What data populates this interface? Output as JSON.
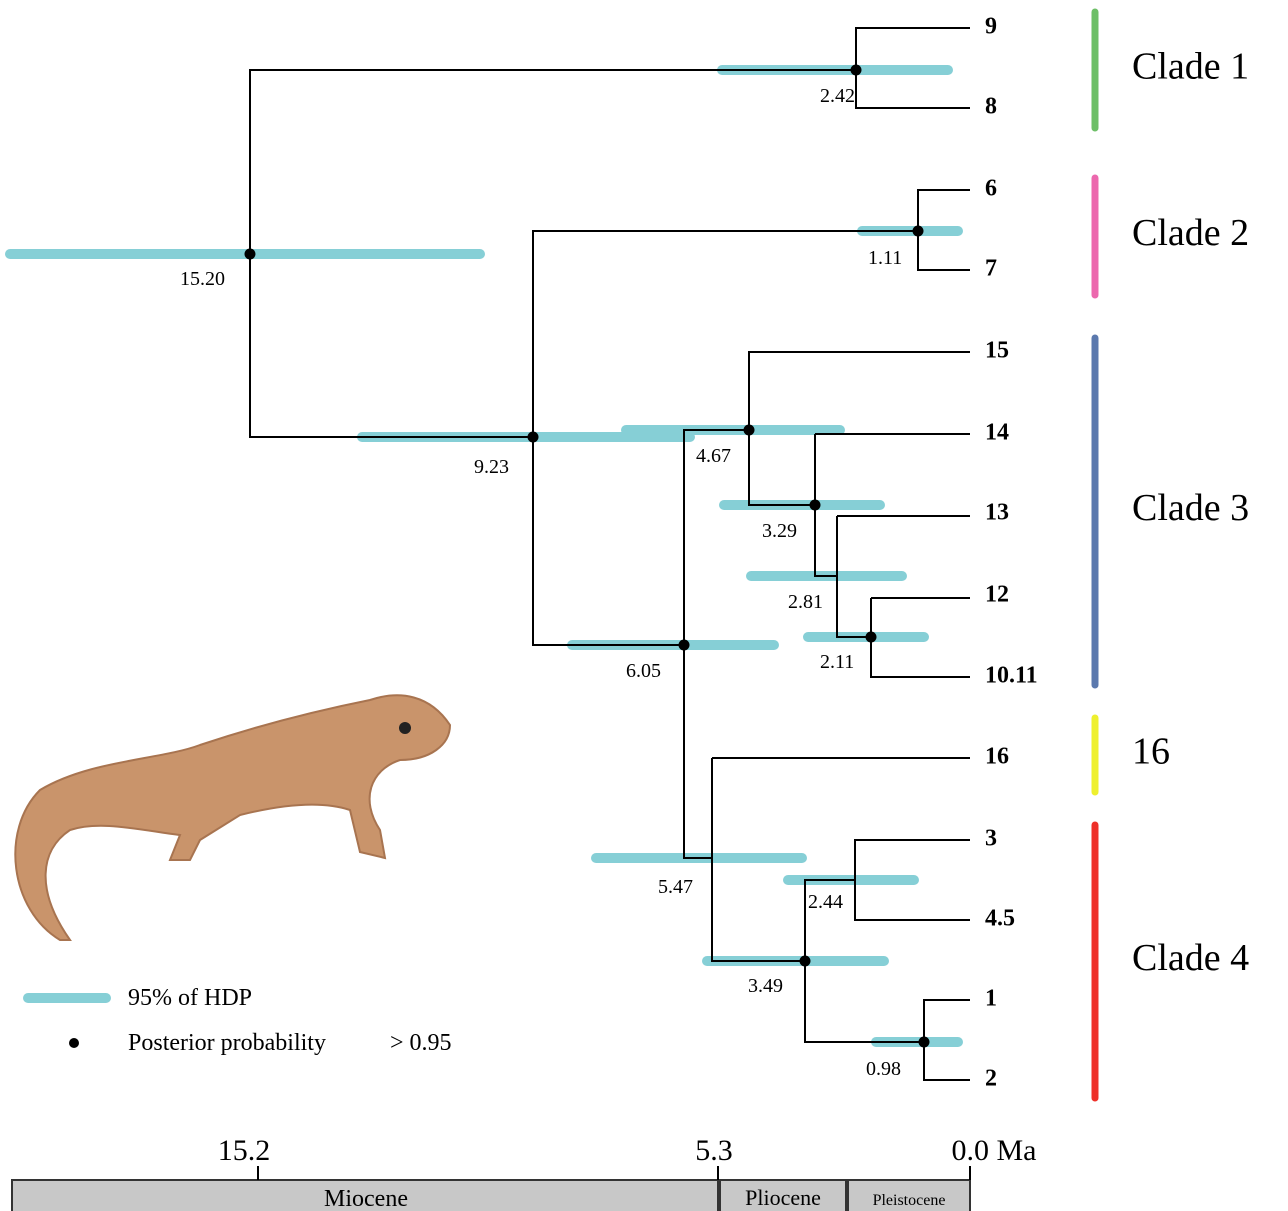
{
  "tips": [
    "9",
    "8",
    "6",
    "7",
    "15",
    "14",
    "13",
    "12",
    "10.11",
    "16",
    "3",
    "4.5",
    "1",
    "2"
  ],
  "node_ages": [
    "2.42",
    "1.11",
    "15.20",
    "9.23",
    "4.67",
    "3.29",
    "2.81",
    "2.11",
    "6.05",
    "5.47",
    "2.44",
    "3.49",
    "0.98"
  ],
  "clades": [
    "Clade 1",
    "Clade 2",
    "Clade 3",
    "16",
    "Clade 4"
  ],
  "legend": {
    "hpd": "95% of HDP",
    "posterior": "Posterior probability",
    "threshold": "> 0.95"
  },
  "timescale": {
    "ticks": [
      "15.2",
      "5.3",
      "0.0 Ma"
    ],
    "epochs": [
      "Miocene",
      "Pliocene",
      "Pleistocene"
    ]
  }
}
